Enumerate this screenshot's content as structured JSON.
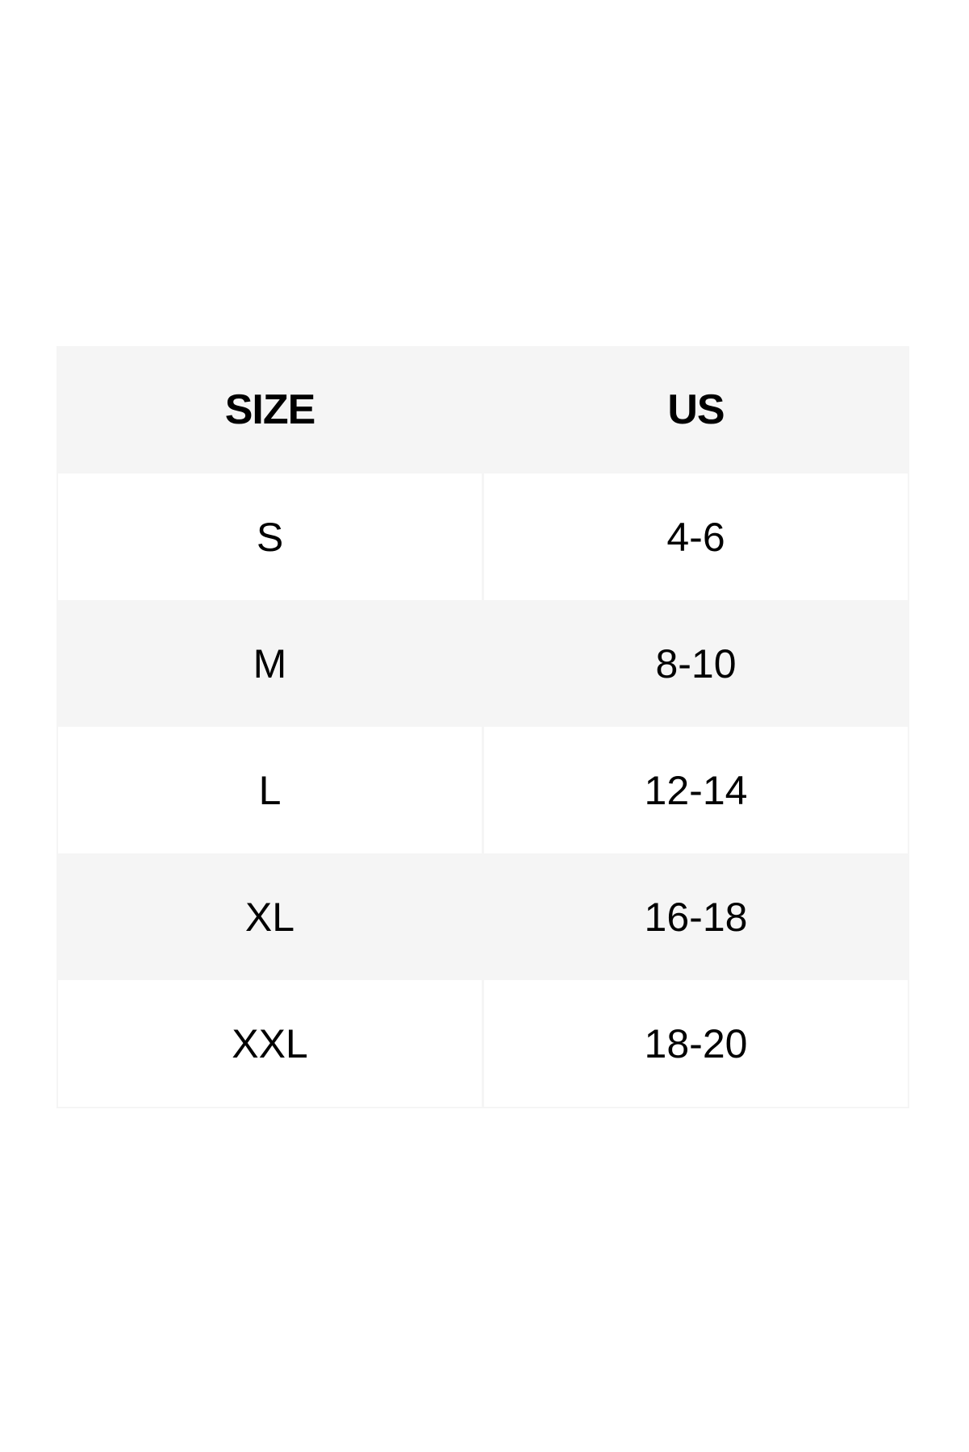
{
  "table": {
    "headers": [
      "SIZE",
      "US"
    ],
    "rows": [
      [
        "S",
        "4-6"
      ],
      [
        "M",
        "8-10"
      ],
      [
        "L",
        "12-14"
      ],
      [
        "XL",
        "16-18"
      ],
      [
        "XXL",
        "18-20"
      ]
    ]
  },
  "colors": {
    "header_bg": "#f5f5f5",
    "alt_row_bg": "#f5f5f5",
    "row_bg": "#ffffff"
  }
}
